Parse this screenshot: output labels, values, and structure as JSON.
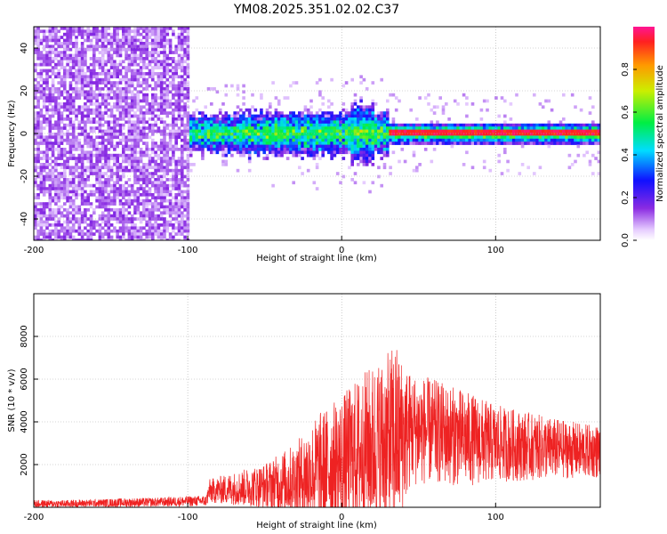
{
  "title": "YM08.2025.351.02.02.C37",
  "chart_data": [
    {
      "type": "heatmap",
      "name": "spectrogram",
      "xlabel": "Height of straight line (km)",
      "ylabel": "Frequency (Hz)",
      "xlim": [
        -200,
        168
      ],
      "ylim": [
        -50,
        50
      ],
      "xticks": [
        -200,
        -100,
        0,
        100
      ],
      "yticks": [
        -40,
        -20,
        0,
        20,
        40
      ],
      "noise_region_x": [
        -200,
        -100
      ],
      "signal_center_hz": 0,
      "colorbar": {
        "label": "Normalized spectral amplitude",
        "range": [
          0.0,
          1.0
        ],
        "ticks": [
          0.0,
          0.2,
          0.4,
          0.6,
          0.8
        ]
      }
    },
    {
      "type": "line",
      "name": "snr",
      "xlabel": "Height of straight line (km)",
      "ylabel": "SNR (10 * v/v)",
      "xlim": [
        -200,
        168
      ],
      "ylim": [
        0,
        10000
      ],
      "xticks": [
        -200,
        -100,
        0,
        100
      ],
      "yticks": [
        2000,
        4000,
        6000,
        8000
      ],
      "color": "#ee2222",
      "envelope": {
        "x": [
          -200,
          -180,
          -160,
          -140,
          -120,
          -100,
          -88,
          -86,
          -70,
          -50,
          -30,
          -15,
          0,
          10,
          20,
          30,
          35,
          40,
          45,
          60,
          80,
          100,
          120,
          140,
          160,
          168
        ],
        "base": [
          150,
          150,
          180,
          200,
          220,
          260,
          280,
          700,
          800,
          900,
          1100,
          1500,
          1800,
          2200,
          2500,
          2600,
          2800,
          3000,
          3400,
          3300,
          3000,
          2800,
          2700,
          2600,
          2500,
          2500
        ],
        "amp": [
          250,
          250,
          250,
          300,
          300,
          350,
          350,
          800,
          1100,
          1500,
          2500,
          3800,
          4500,
          5000,
          5500,
          6000,
          6500,
          5000,
          3800,
          3500,
          3200,
          2600,
          2300,
          2000,
          1800,
          1800
        ]
      }
    }
  ]
}
